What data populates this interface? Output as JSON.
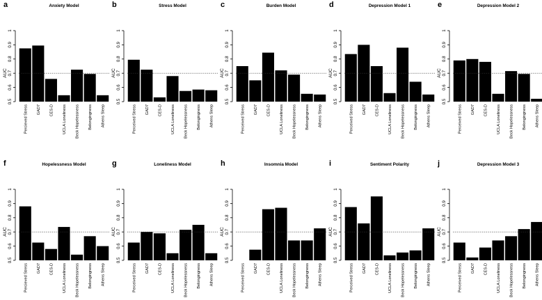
{
  "figure": {
    "ylabel": "AUC",
    "yticks": [
      "0.5",
      "0.6",
      "0.7",
      "0.8",
      "0.9",
      "1"
    ],
    "reference_line": 0.7
  },
  "chart_data": [
    {
      "letter": "a",
      "type": "bar",
      "title": "Anxiety Model",
      "ylabel": "AUC",
      "ylim": [
        0.5,
        1.0
      ],
      "reference": 0.7,
      "categories": [
        "Percieved Stress",
        "GAD7",
        "CES-D",
        "UCLA Loneliness",
        "Beck Hopelessness",
        "Belongingness",
        "Athens Sleep"
      ],
      "values": [
        0.875,
        0.895,
        0.66,
        0.545,
        0.725,
        0.695,
        0.545
      ]
    },
    {
      "letter": "b",
      "type": "bar",
      "title": "Stress Model",
      "ylabel": "AUC",
      "ylim": [
        0.5,
        1.0
      ],
      "reference": 0.7,
      "categories": [
        "Perceived Stress",
        "GAD7",
        "CES-D",
        "UCLA Loneliness",
        "Beck Hopelessness",
        "Belongingness",
        "Athens Sleep"
      ],
      "values": [
        0.795,
        0.725,
        0.53,
        0.68,
        0.575,
        0.585,
        0.58
      ]
    },
    {
      "letter": "c",
      "type": "bar",
      "title": "Burden Model",
      "ylabel": "AUC",
      "ylim": [
        0.5,
        1.0
      ],
      "reference": 0.7,
      "categories": [
        "Perceived Stress",
        "GAD7",
        "CES-D",
        "UCLA Loneliness",
        "Beck Hopelessness",
        "Belongingness",
        "Athens Sleep"
      ],
      "values": [
        0.75,
        0.65,
        0.845,
        0.72,
        0.69,
        0.555,
        0.55
      ]
    },
    {
      "letter": "d",
      "type": "bar",
      "title": "Depression Model 1",
      "ylabel": "AUC",
      "ylim": [
        0.5,
        1.0
      ],
      "reference": 0.7,
      "categories": [
        "Perceived Stress",
        "GAD7",
        "CES-D",
        "UCLA Loneliness",
        "Beck Hopelessness",
        "Belongingness",
        "Athens Sleep"
      ],
      "values": [
        0.835,
        0.9,
        0.75,
        0.56,
        0.88,
        0.64,
        0.55
      ]
    },
    {
      "letter": "e",
      "type": "bar",
      "title": "Depression Model 2",
      "ylabel": "AUC",
      "ylim": [
        0.5,
        1.0
      ],
      "reference": 0.7,
      "categories": [
        "Perceived Stress",
        "GAD7",
        "CES-D",
        "UCLA Loneliness",
        "Beck Hopelessness",
        "Belongingness",
        "Athens Sleep"
      ],
      "values": [
        0.79,
        0.8,
        0.78,
        0.555,
        0.715,
        0.695,
        0.52
      ]
    },
    {
      "letter": "f",
      "type": "bar",
      "title": "Hopelessness Model",
      "ylabel": "AUC",
      "ylim": [
        0.5,
        1.0
      ],
      "reference": 0.7,
      "categories": [
        "Percieved Stress",
        "GAD7",
        "CES-D",
        "UCLA Loneliness",
        "Beck Hopelessness",
        "Belongingness",
        "Athens Sleep"
      ],
      "values": [
        0.88,
        0.625,
        0.58,
        0.735,
        0.54,
        0.67,
        0.6
      ]
    },
    {
      "letter": "g",
      "type": "bar",
      "title": "Loneliness Model",
      "ylabel": "AUC",
      "ylim": [
        0.5,
        1.0
      ],
      "reference": 0.7,
      "categories": [
        "Perceived Stress",
        "GAD7",
        "CES-D",
        "UCLA Loneliness",
        "Beck Hopelessness",
        "Belongingness",
        "Athens Sleep"
      ],
      "values": [
        0.625,
        0.7,
        0.69,
        0.55,
        0.715,
        0.75,
        0.55
      ]
    },
    {
      "letter": "h",
      "type": "bar",
      "title": "Insomnia Model",
      "ylabel": "AUC",
      "ylim": [
        0.5,
        1.0
      ],
      "reference": 0.7,
      "categories": [
        "Perceived Stress",
        "GAD7",
        "CES-D",
        "UCLA Loneliness",
        "Beck Hopelessness",
        "Belongingness",
        "Athens Sleep"
      ],
      "values": [
        0.5,
        0.575,
        0.86,
        0.87,
        0.64,
        0.64,
        0.725
      ]
    },
    {
      "letter": "i",
      "type": "bar",
      "title": "Sentiment Polarity",
      "ylabel": "AUC",
      "ylim": [
        0.5,
        1.0
      ],
      "reference": 0.7,
      "categories": [
        "Perceived Stress",
        "GAD7",
        "CES-D",
        "UCLA Loneliness",
        "Beck Hopelessness",
        "Belongingness",
        "Athens Sleep"
      ],
      "values": [
        0.875,
        0.76,
        0.95,
        0.535,
        0.555,
        0.57,
        0.725
      ]
    },
    {
      "letter": "j",
      "type": "bar",
      "title": "Depression Model 3",
      "ylabel": "AUC",
      "ylim": [
        0.5,
        1.0
      ],
      "reference": 0.7,
      "categories": [
        "Perceived Stress",
        "GAD7",
        "CES-D",
        "UCLA Loneliness",
        "Beck Hopelessness",
        "Belongingness",
        "Athens Sleep"
      ],
      "values": [
        0.625,
        0.52,
        0.59,
        0.64,
        0.67,
        0.72,
        0.77
      ]
    }
  ]
}
